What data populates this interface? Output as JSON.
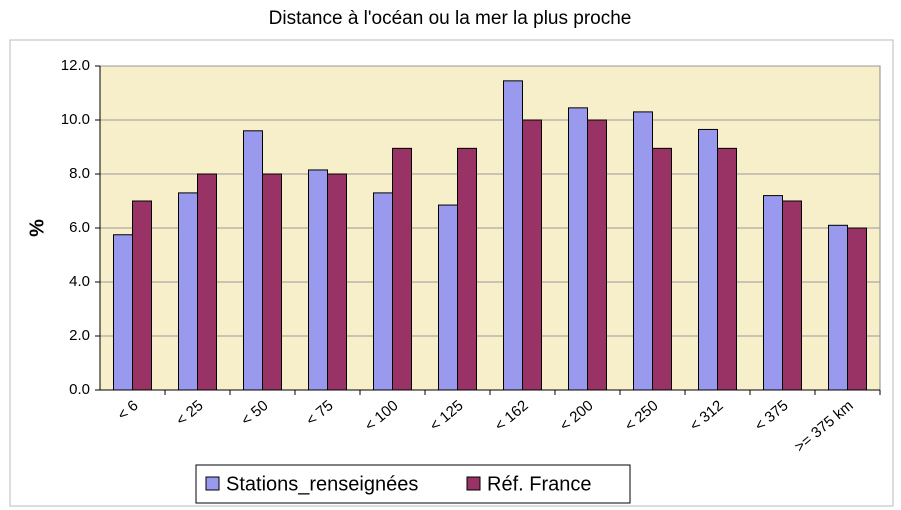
{
  "chart_data": {
    "type": "bar",
    "title": "Distance à l'océan ou la mer la plus proche",
    "y_label": "%",
    "categories": [
      "< 6",
      "< 25",
      "< 50",
      "< 75",
      "< 100",
      "< 125",
      "< 162",
      "< 200",
      "< 250",
      "< 312",
      "< 375",
      ">= 375 km"
    ],
    "series": [
      {
        "name": "Stations_renseignées",
        "color": "#9999ee",
        "values": [
          5.75,
          7.3,
          9.6,
          8.15,
          7.3,
          6.85,
          11.45,
          10.45,
          10.3,
          9.65,
          7.2,
          6.1
        ]
      },
      {
        "name": "Réf. France",
        "color": "#993366",
        "values": [
          7.0,
          8.0,
          8.0,
          8.0,
          8.95,
          8.95,
          10.0,
          10.0,
          8.95,
          8.95,
          7.0,
          6.0
        ]
      }
    ],
    "ylim": [
      0,
      12
    ],
    "yticks": [
      {
        "value": 0,
        "label": "0.0"
      },
      {
        "value": 2,
        "label": "2.0"
      },
      {
        "value": 4,
        "label": "4.0"
      },
      {
        "value": 6,
        "label": "6.0"
      },
      {
        "value": 8,
        "label": "8.0"
      },
      {
        "value": 10,
        "label": "10.0"
      },
      {
        "value": 12,
        "label": "12.0"
      }
    ],
    "grid": true,
    "legend": "bottom"
  }
}
